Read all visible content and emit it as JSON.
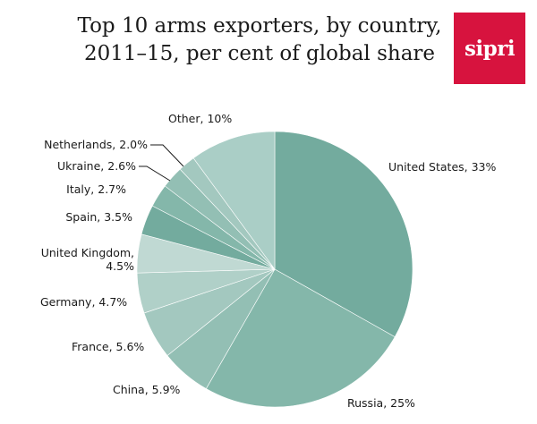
{
  "title_line1": "Top 10 arms exporters, by country,",
  "title_line2": "2011–15, per cent of global share",
  "logo_text": "sipri",
  "logo_color": "#d7133e",
  "chart_data": {
    "type": "pie",
    "title": "Top 10 arms exporters, by country, 2011–15, per cent of global share",
    "slices": [
      {
        "name": "United States",
        "value": 33,
        "label": "United States, 33%",
        "color": "#73ab9e"
      },
      {
        "name": "Russia",
        "value": 25,
        "label": "Russia, 25%",
        "color": "#84b7aa"
      },
      {
        "name": "China",
        "value": 5.9,
        "label": "China, 5.9%",
        "color": "#93bfb4"
      },
      {
        "name": "France",
        "value": 5.6,
        "label": "France, 5.6%",
        "color": "#a3c8bf"
      },
      {
        "name": "Germany",
        "value": 4.7,
        "label": "Germany, 4.7%",
        "color": "#b0d0c8"
      },
      {
        "name": "United Kingdom",
        "value": 4.5,
        "label_lines": [
          "United Kingdom,",
          "4.5%"
        ],
        "color": "#c0d9d3"
      },
      {
        "name": "Spain",
        "value": 3.5,
        "label": "Spain, 3.5%",
        "color": "#73ab9e"
      },
      {
        "name": "Italy",
        "value": 2.7,
        "label": "Italy, 2.7%",
        "color": "#84b7aa"
      },
      {
        "name": "Ukraine",
        "value": 2.6,
        "label": "Ukraine, 2.6%",
        "color": "#93bfb4"
      },
      {
        "name": "Netherlands",
        "value": 2.0,
        "label": "Netherlands, 2.0%",
        "color": "#a3c8bf"
      },
      {
        "name": "Other",
        "value": 10,
        "label": "Other, 10%",
        "color": "#aacec6"
      }
    ]
  }
}
